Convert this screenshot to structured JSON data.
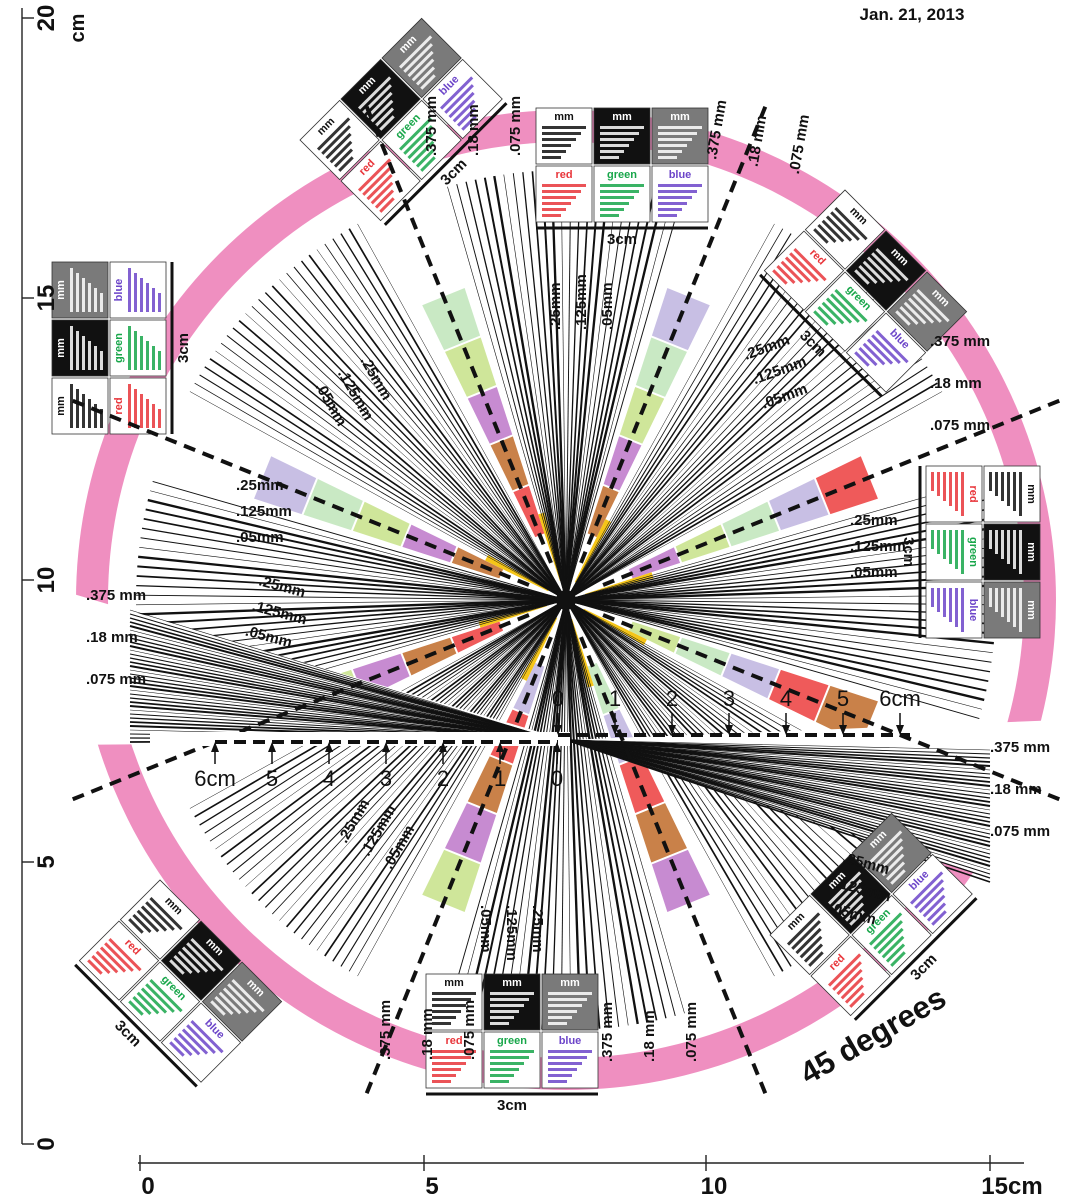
{
  "header": {
    "date": "Jan. 21, 2013"
  },
  "axes": {
    "vertical": {
      "unit": "cm",
      "ticks": [
        "0",
        "5",
        "10",
        "15",
        "20"
      ]
    },
    "horizontal": {
      "ticks": [
        "0",
        "5",
        "10",
        "15cm"
      ]
    }
  },
  "scale_bars": {
    "upper": [
      "0",
      "1",
      "2",
      "3",
      "4",
      "5",
      "6cm"
    ],
    "lower": [
      "6cm",
      "5",
      "4",
      "3",
      "2",
      "1",
      "0"
    ]
  },
  "bar_labels": {
    "fine": [
      ".25mm",
      ".125mm",
      ".05mm"
    ],
    "coarse": [
      ".375 mm",
      ".18 mm",
      ".075 mm"
    ]
  },
  "patch_labels": {
    "mm": "mm",
    "red": "red",
    "green": "green",
    "blue": "blue",
    "len": "3cm"
  },
  "angle_label": "45 degrees",
  "colors": {
    "ring": "#ef8fc0",
    "red": "#ef5a5a",
    "orange": "#c98149",
    "yellow": "#f5c518",
    "lime": "#cfe69a",
    "green_patch": "#c9e9c4",
    "purple": "#c78bd1",
    "lavender": "#c8bfe4",
    "text_red": "#e8353a",
    "text_green": "#18a64a",
    "text_blue": "#6c45c9"
  }
}
